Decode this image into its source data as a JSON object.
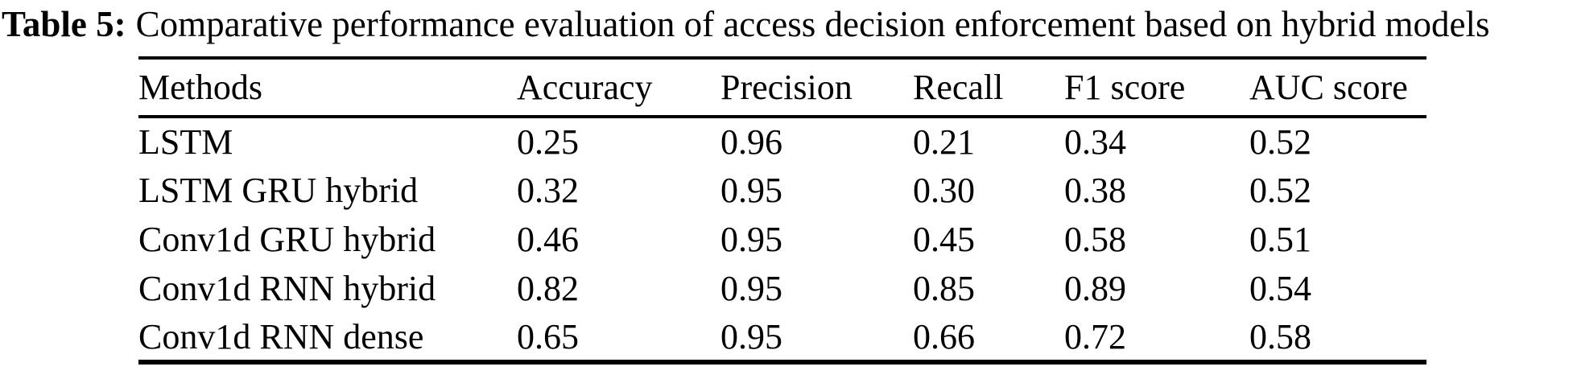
{
  "page": {
    "background_color": "#ffffff",
    "text_color": "#000000"
  },
  "caption": {
    "label": "Table 5:",
    "text": "Comparative performance evaluation of access decision enforcement based on hybrid models"
  },
  "table": {
    "columns": [
      "Methods",
      "Accuracy",
      "Precision",
      "Recall",
      "F1 score",
      "AUC score"
    ],
    "rows": [
      [
        "LSTM",
        "0.25",
        "0.96",
        "0.21",
        "0.34",
        "0.52"
      ],
      [
        "LSTM GRU hybrid",
        "0.32",
        "0.95",
        "0.30",
        "0.38",
        "0.52"
      ],
      [
        "Conv1d GRU hybrid",
        "0.46",
        "0.95",
        "0.45",
        "0.58",
        "0.51"
      ],
      [
        "Conv1d RNN hybrid",
        "0.82",
        "0.95",
        "0.85",
        "0.89",
        "0.54"
      ],
      [
        "Conv1d RNN dense",
        "0.65",
        "0.95",
        "0.66",
        "0.72",
        "0.58"
      ]
    ]
  }
}
